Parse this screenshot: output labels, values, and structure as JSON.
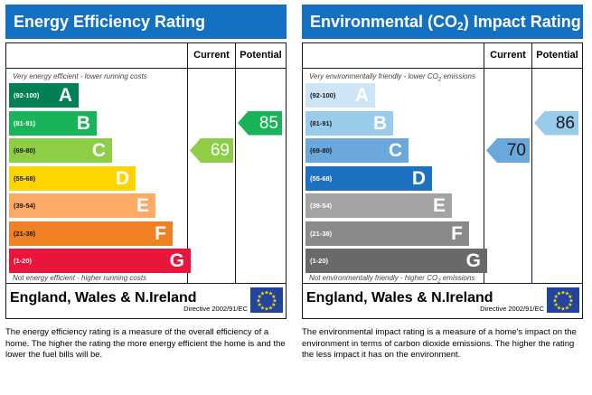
{
  "colors": {
    "title_bar": "#1470c2",
    "ee_bands": [
      "#008054",
      "#19b459",
      "#8dce46",
      "#ffd500",
      "#fcaa65",
      "#ef8023",
      "#e9153b"
    ],
    "ei_bands": [
      "#cde5f6",
      "#99cceb",
      "#6aa8db",
      "#1e70c0",
      "#a3a3a3",
      "#8a8a8a",
      "#696969"
    ]
  },
  "chart_data": [
    {
      "type": "bar",
      "title": "Energy Efficiency Rating",
      "columns": [
        "Current",
        "Potential"
      ],
      "top_note": "Very energy efficient - lower running costs",
      "bottom_note": "Not energy efficient - higher running costs",
      "bands": [
        {
          "range": "(92-100)",
          "letter": "A"
        },
        {
          "range": "(81-91)",
          "letter": "B"
        },
        {
          "range": "(69-80)",
          "letter": "C"
        },
        {
          "range": "(55-68)",
          "letter": "D"
        },
        {
          "range": "(39-54)",
          "letter": "E"
        },
        {
          "range": "(21-38)",
          "letter": "F"
        },
        {
          "range": "(1-20)",
          "letter": "G"
        }
      ],
      "current": 69,
      "potential": 85,
      "region": "England, Wales & N.Ireland",
      "directive": "Directive 2002/91/EC"
    },
    {
      "type": "bar",
      "title": "Environmental (CO2) Impact Rating",
      "title_main": "Environmental (CO",
      "title_sub": "2",
      "title_end": ") Impact Rating",
      "columns": [
        "Current",
        "Potential"
      ],
      "top_note": "Very environmentally friendly - lower CO2 emissions",
      "top_note_main": "Very environmentally friendly - lower CO",
      "top_note_sub": "2",
      "top_note_end": " emissions",
      "bottom_note": "Not environmentally friendly - higher CO2 emissions",
      "bottom_note_main": "Not environmentally friendly - higher CO",
      "bottom_note_sub": "2",
      "bottom_note_end": " emissions",
      "bands": [
        {
          "range": "(92-100)",
          "letter": "A"
        },
        {
          "range": "(81-91)",
          "letter": "B"
        },
        {
          "range": "(69-80)",
          "letter": "C"
        },
        {
          "range": "(55-68)",
          "letter": "D"
        },
        {
          "range": "(39-54)",
          "letter": "E"
        },
        {
          "range": "(21-38)",
          "letter": "F"
        },
        {
          "range": "(1-20)",
          "letter": "G"
        }
      ],
      "current": 70,
      "potential": 86,
      "region": "England, Wales & N.Ireland",
      "directive": "Directive 2002/91/EC"
    }
  ],
  "captions": {
    "energy": "The energy efficiency rating is a measure of the overall efficiency of a home. The higher the rating the more energy efficient the home is and the lower the fuel bills will be.",
    "environment": "The environmental impact rating is a measure of a home's impact on the environment in terms of carbon dioxide emissions. The higher the rating the less impact it has on the environment."
  }
}
